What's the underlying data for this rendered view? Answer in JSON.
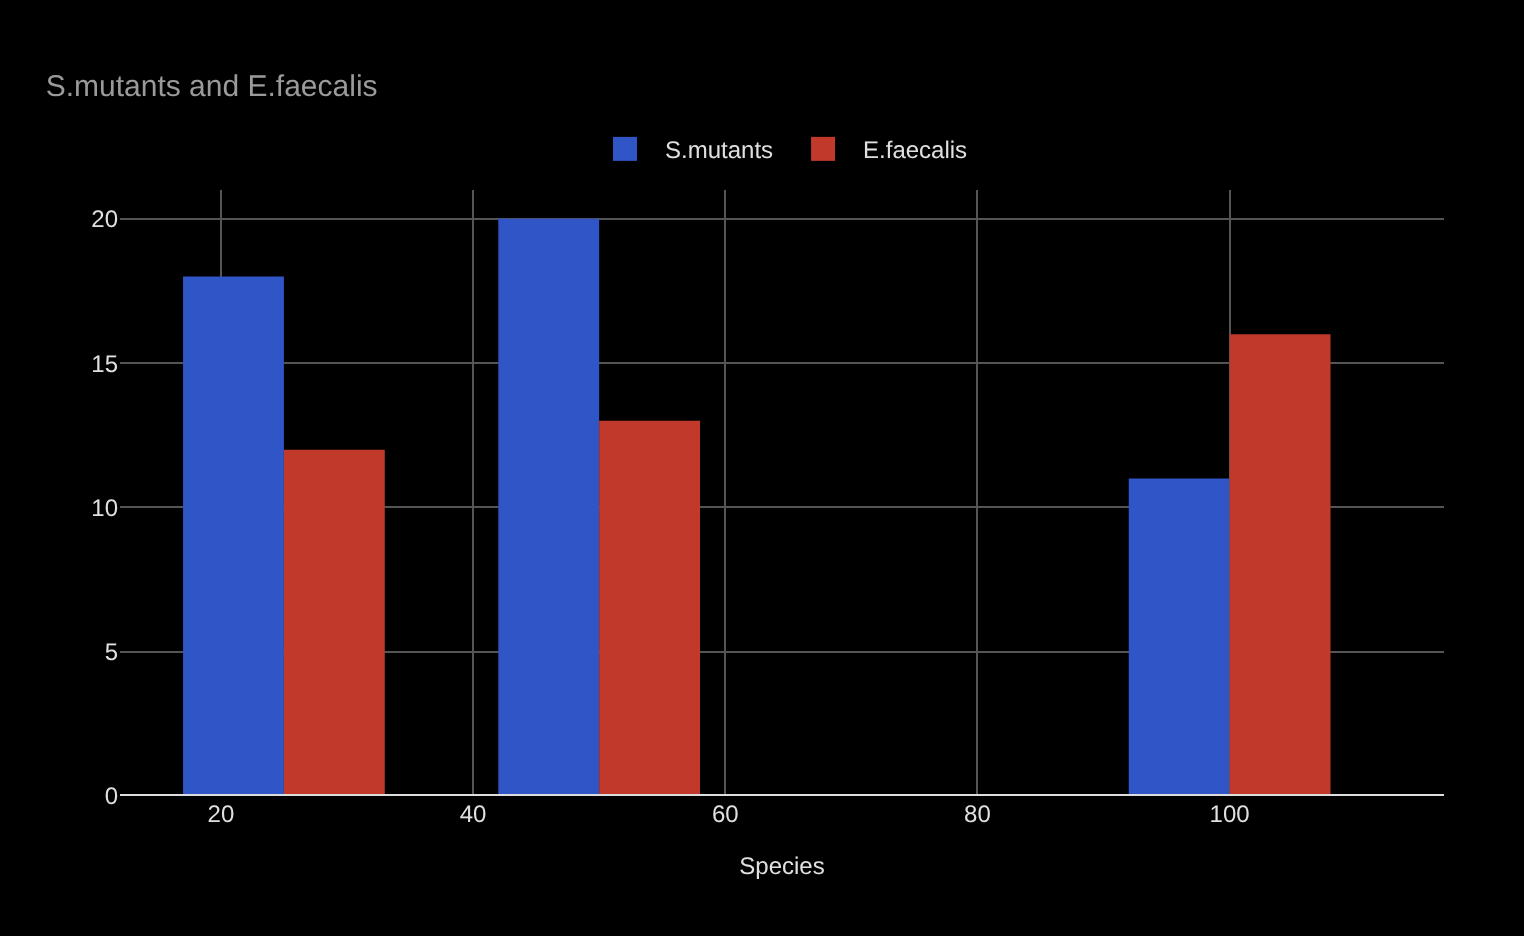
{
  "chart_data": {
    "type": "bar",
    "title": "S.mutants and E.faecalis",
    "xlabel": "Species",
    "x": [
      25,
      50,
      100
    ],
    "series": [
      {
        "name": "S.mutants",
        "color": "#2f55c6",
        "values": [
          18,
          20,
          11
        ]
      },
      {
        "name": "E.faecalis",
        "color": "#c0392b",
        "values": [
          12,
          13,
          16
        ]
      }
    ],
    "xlim": [
      12,
      117
    ],
    "xticks": [
      20,
      40,
      60,
      80,
      100
    ],
    "ylim": [
      0,
      21
    ],
    "yticks": [
      0,
      5,
      10,
      15,
      20
    ],
    "grid": true,
    "legend": "top"
  }
}
